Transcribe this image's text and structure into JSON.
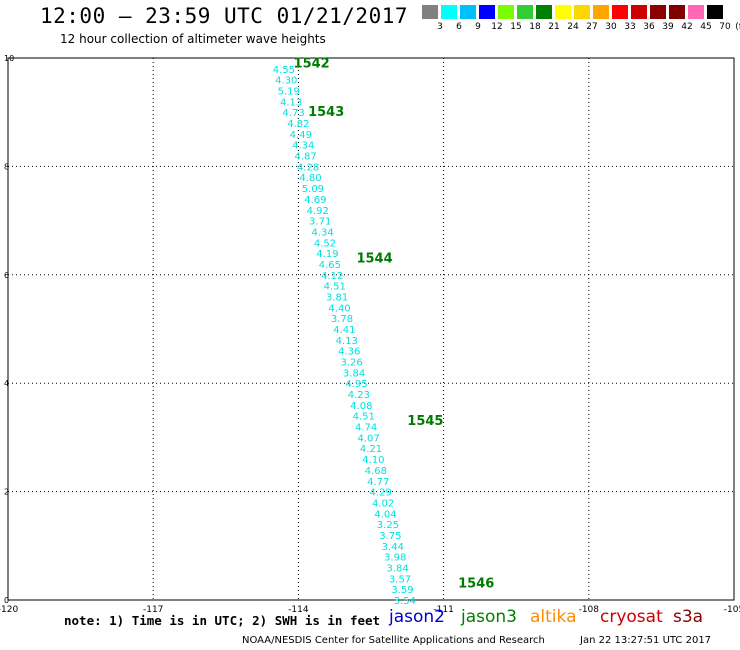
{
  "title": "12:00 – 23:59 UTC 01/21/2017",
  "subtitle": "12 hour collection of altimeter wave heights",
  "colorbar": {
    "labels": [
      "3",
      "6",
      "9",
      "12",
      "15",
      "18",
      "21",
      "24",
      "27",
      "30",
      "33",
      "36",
      "39",
      "42",
      "45",
      "70"
    ],
    "unit": "(ft)",
    "colors": [
      "#808080",
      "#00ffff",
      "#00bfff",
      "#0000ff",
      "#7cfc00",
      "#32cd32",
      "#008000",
      "#ffff00",
      "#ffd700",
      "#ffa500",
      "#ff0000",
      "#cc0000",
      "#8b0000",
      "#800000",
      "#ff69b4",
      "#000000"
    ]
  },
  "note": "note: 1) Time is in UTC; 2) SWH is in feet",
  "satellites": [
    {
      "name": "jason2",
      "color": "#0000cc"
    },
    {
      "name": "jason3",
      "color": "#008000"
    },
    {
      "name": "altika",
      "color": "#ff8c00"
    },
    {
      "name": "cryosat",
      "color": "#cc0000"
    },
    {
      "name": "s3a",
      "color": "#8b0000"
    }
  ],
  "footer": {
    "center": "NOAA/NESDIS Center for Satellite Applications and Research",
    "time": "Jan 22 13:27:51 UTC 2017"
  },
  "chart_data": {
    "type": "scatter",
    "xlim": [
      -120,
      -105
    ],
    "ylim": [
      0,
      10
    ],
    "x_ticks": [
      "-120",
      "-117",
      "-114",
      "-111",
      "-108",
      "-105"
    ],
    "y_ticks": [
      "0",
      "2",
      "4",
      "6",
      "8",
      "10"
    ],
    "grid": true,
    "series": [
      {
        "color": "#00e0e0",
        "points": [
          {
            "x": -114.3,
            "y": 9.8,
            "label": "4.55"
          },
          {
            "x": -114.25,
            "y": 9.6,
            "label": "4.30"
          },
          {
            "x": -114.2,
            "y": 9.4,
            "label": "5.19"
          },
          {
            "x": -114.15,
            "y": 9.2,
            "label": "4.13"
          },
          {
            "x": -114.1,
            "y": 9.0,
            "label": "4.73"
          },
          {
            "x": -114.0,
            "y": 8.8,
            "label": "4.82"
          },
          {
            "x": -113.95,
            "y": 8.6,
            "label": "4.49"
          },
          {
            "x": -113.9,
            "y": 8.4,
            "label": "4.34"
          },
          {
            "x": -113.85,
            "y": 8.2,
            "label": "4.87"
          },
          {
            "x": -113.8,
            "y": 8.0,
            "label": "4.28"
          },
          {
            "x": -113.75,
            "y": 7.8,
            "label": "4.80"
          },
          {
            "x": -113.7,
            "y": 7.6,
            "label": "5.09"
          },
          {
            "x": -113.65,
            "y": 7.4,
            "label": "4.69"
          },
          {
            "x": -113.6,
            "y": 7.2,
            "label": "4.92"
          },
          {
            "x": -113.55,
            "y": 7.0,
            "label": "3.71"
          },
          {
            "x": -113.5,
            "y": 6.8,
            "label": "4.34"
          },
          {
            "x": -113.45,
            "y": 6.6,
            "label": "4.52"
          },
          {
            "x": -113.4,
            "y": 6.4,
            "label": "4.19"
          },
          {
            "x": -113.35,
            "y": 6.2,
            "label": "4.65"
          },
          {
            "x": -113.3,
            "y": 6.0,
            "label": "4.12"
          },
          {
            "x": -113.25,
            "y": 5.8,
            "label": "4.51"
          },
          {
            "x": -113.2,
            "y": 5.6,
            "label": "3.81"
          },
          {
            "x": -113.15,
            "y": 5.4,
            "label": "4.40"
          },
          {
            "x": -113.1,
            "y": 5.2,
            "label": "3.78"
          },
          {
            "x": -113.05,
            "y": 5.0,
            "label": "4.41"
          },
          {
            "x": -113.0,
            "y": 4.8,
            "label": "4.13"
          },
          {
            "x": -112.95,
            "y": 4.6,
            "label": "4.36"
          },
          {
            "x": -112.9,
            "y": 4.4,
            "label": "3.26"
          },
          {
            "x": -112.85,
            "y": 4.2,
            "label": "3.84"
          },
          {
            "x": -112.8,
            "y": 4.0,
            "label": "4.95"
          },
          {
            "x": -112.75,
            "y": 3.8,
            "label": "4.23"
          },
          {
            "x": -112.7,
            "y": 3.6,
            "label": "4.08"
          },
          {
            "x": -112.65,
            "y": 3.4,
            "label": "4.51"
          },
          {
            "x": -112.6,
            "y": 3.2,
            "label": "4.74"
          },
          {
            "x": -112.55,
            "y": 3.0,
            "label": "4.07"
          },
          {
            "x": -112.5,
            "y": 2.8,
            "label": "4.21"
          },
          {
            "x": -112.45,
            "y": 2.6,
            "label": "4.10"
          },
          {
            "x": -112.4,
            "y": 2.4,
            "label": "4.68"
          },
          {
            "x": -112.35,
            "y": 2.2,
            "label": "4.77"
          },
          {
            "x": -112.3,
            "y": 2.0,
            "label": "4.29"
          },
          {
            "x": -112.25,
            "y": 1.8,
            "label": "4.02"
          },
          {
            "x": -112.2,
            "y": 1.6,
            "label": "4.04"
          },
          {
            "x": -112.15,
            "y": 1.4,
            "label": "3.25"
          },
          {
            "x": -112.1,
            "y": 1.2,
            "label": "3.75"
          },
          {
            "x": -112.05,
            "y": 1.0,
            "label": "3.44"
          },
          {
            "x": -112.0,
            "y": 0.8,
            "label": "3.98"
          },
          {
            "x": -111.95,
            "y": 0.6,
            "label": "3.84"
          },
          {
            "x": -111.9,
            "y": 0.4,
            "label": "3.57"
          },
          {
            "x": -111.85,
            "y": 0.2,
            "label": "3.59"
          },
          {
            "x": -111.8,
            "y": 0.0,
            "label": "3.54"
          }
        ]
      }
    ],
    "annotations": [
      {
        "x": -114.1,
        "y": 9.9,
        "text": "1542"
      },
      {
        "x": -113.8,
        "y": 9.0,
        "text": "1543"
      },
      {
        "x": -112.8,
        "y": 6.3,
        "text": "1544"
      },
      {
        "x": -111.75,
        "y": 3.3,
        "text": "1545"
      },
      {
        "x": -110.7,
        "y": 0.3,
        "text": "1546"
      }
    ]
  }
}
